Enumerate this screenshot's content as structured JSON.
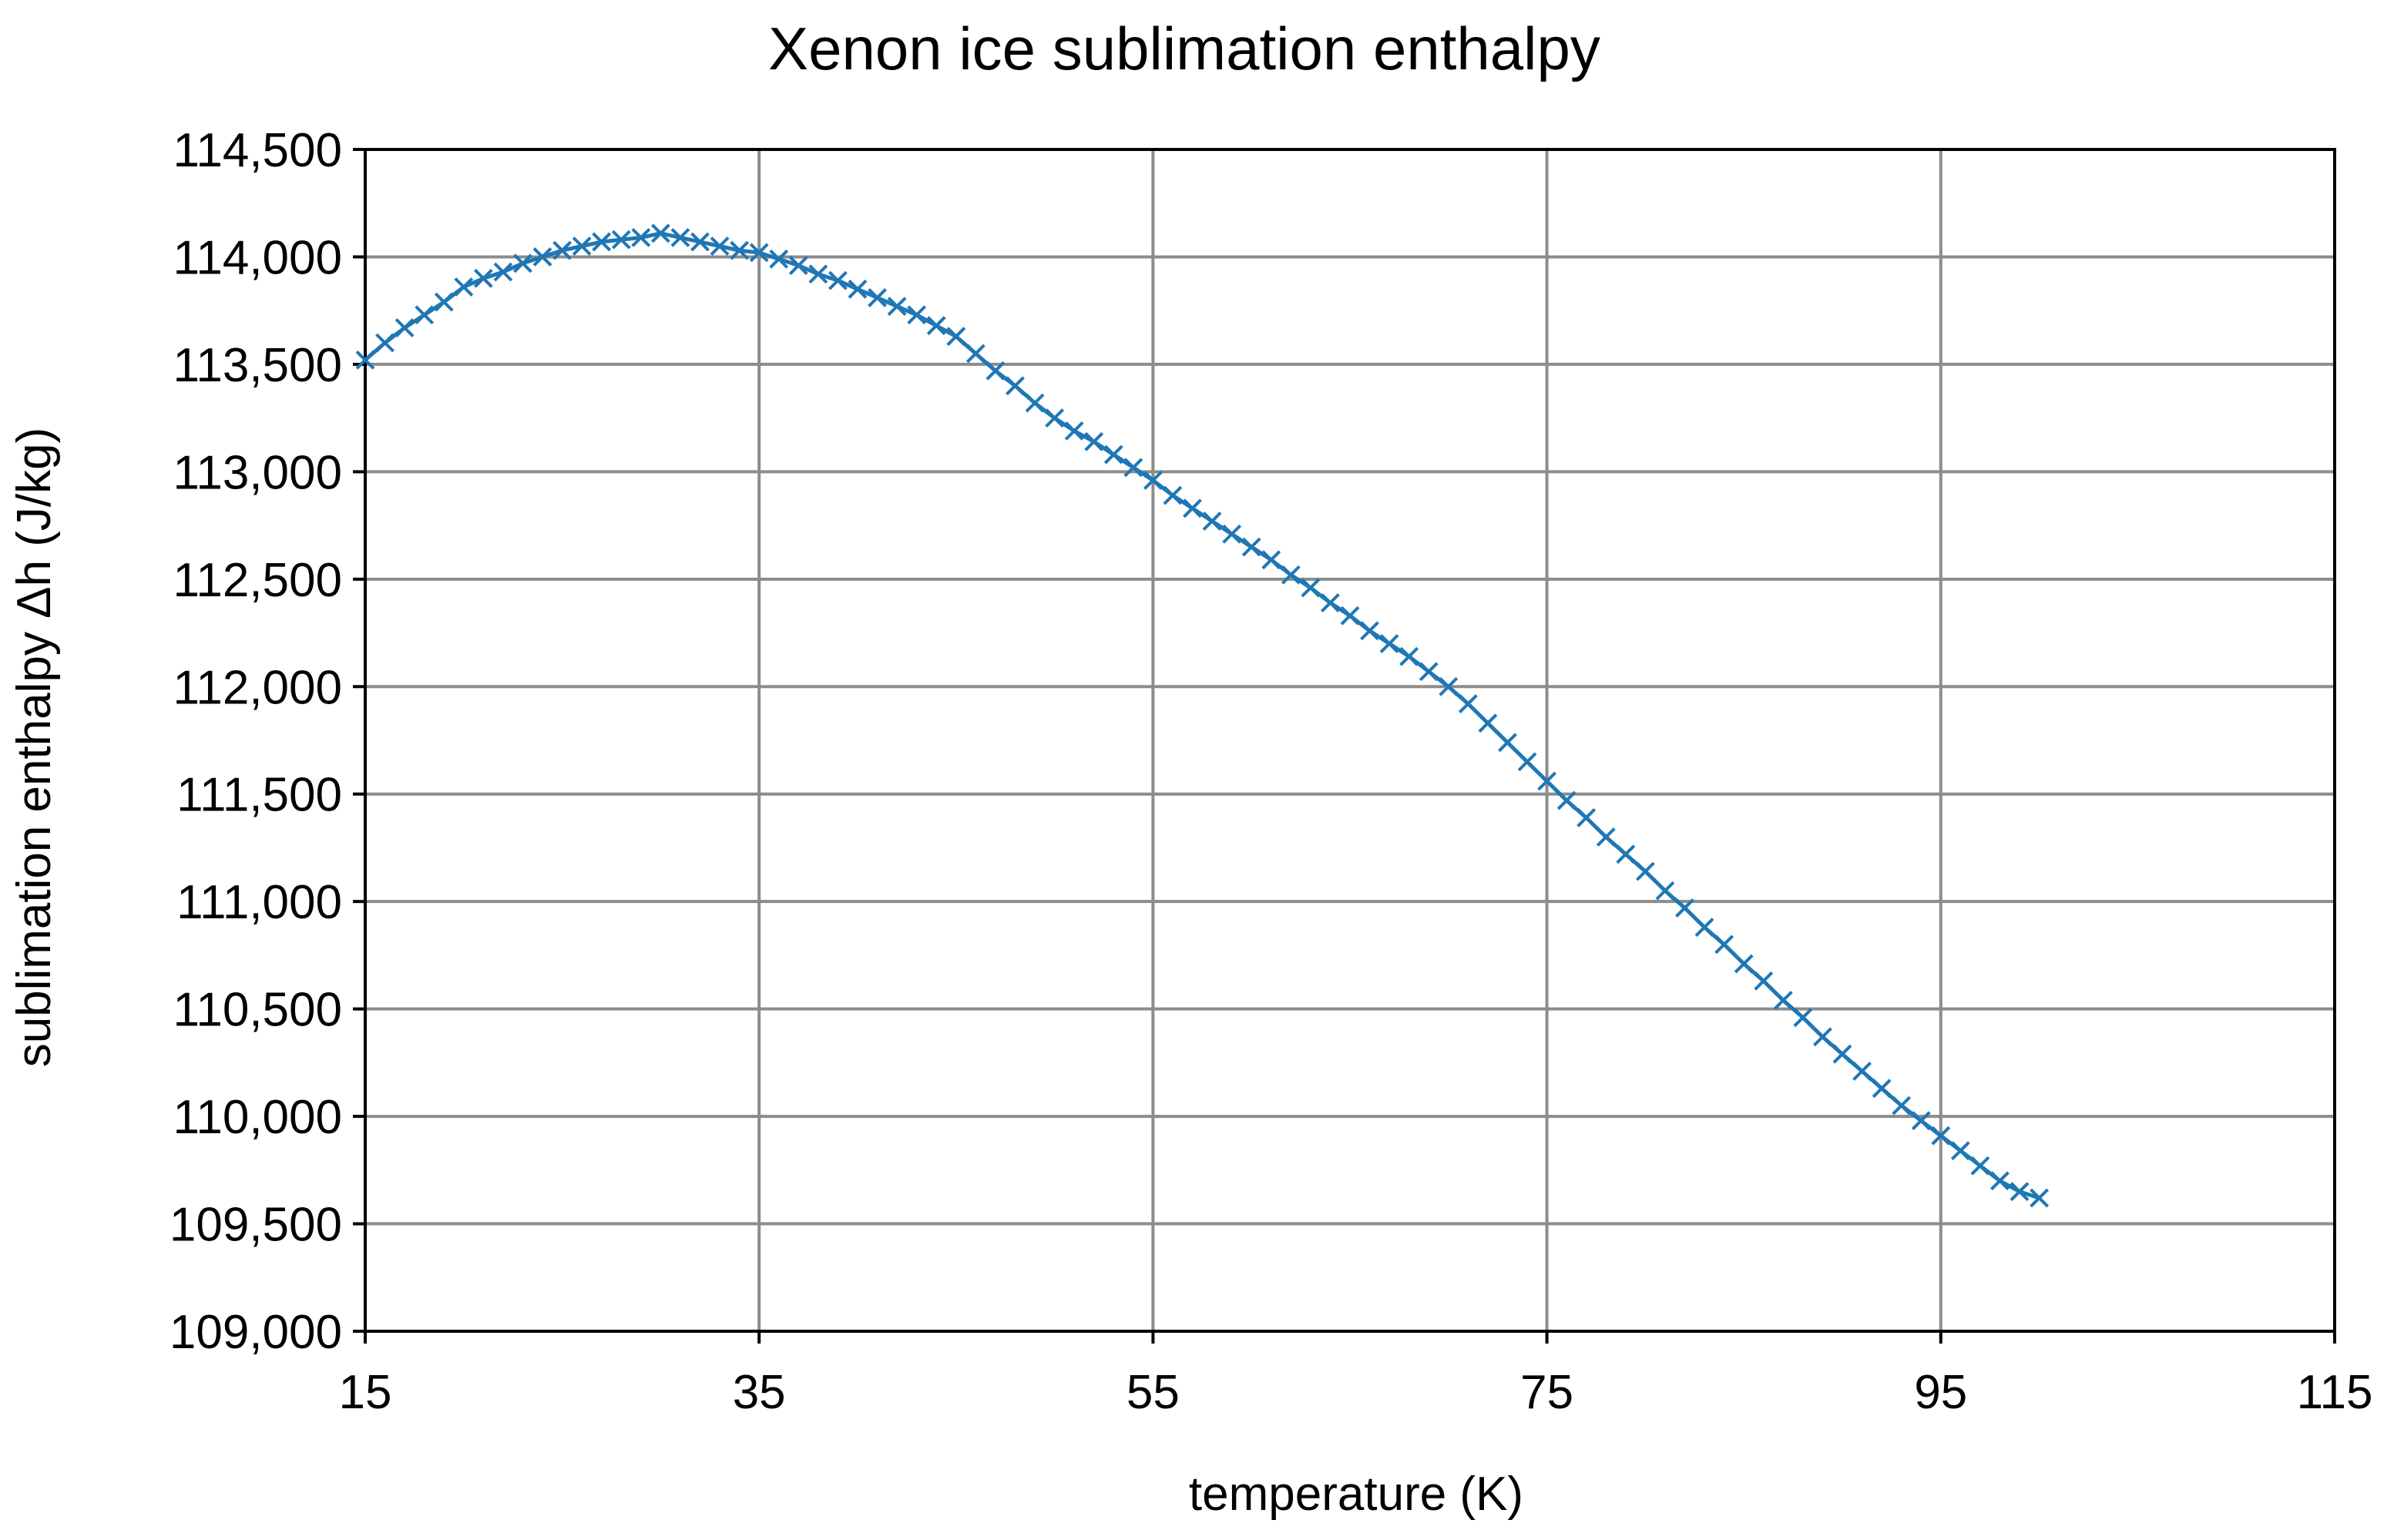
{
  "chart_data": {
    "type": "line",
    "title": "Xenon ice sublimation enthalpy",
    "xlabel": "temperature  (K)",
    "ylabel": "sublimation enthalpy Δh  (J/kg)",
    "xlim": [
      15,
      115
    ],
    "ylim": [
      109000,
      114500
    ],
    "x_ticks": [
      15,
      35,
      55,
      75,
      95,
      115
    ],
    "x_tick_labels": [
      "15",
      "35",
      "55",
      "75",
      "95",
      "115"
    ],
    "y_ticks": [
      109000,
      109500,
      110000,
      110500,
      111000,
      111500,
      112000,
      112500,
      113000,
      113500,
      114000,
      114500
    ],
    "y_tick_labels": [
      "109,000",
      "109,500",
      "110,000",
      "110,500",
      "111,000",
      "111,500",
      "112,000",
      "112,500",
      "113,000",
      "113,500",
      "114,000",
      "114,500"
    ],
    "grid": true,
    "legend": "none",
    "series_color": "#1f77b4",
    "marker": "x",
    "series": [
      {
        "x": [
          15,
          16,
          17,
          18,
          19,
          20,
          21,
          22,
          23,
          24,
          25,
          26,
          27,
          28,
          29,
          30,
          31,
          32,
          33,
          34,
          35,
          36,
          37,
          38,
          39,
          40,
          41,
          42,
          43,
          44,
          45,
          46,
          47,
          48,
          49,
          50,
          51,
          52,
          53,
          54,
          55,
          56,
          57,
          58,
          59,
          60,
          61,
          62,
          63,
          64,
          65,
          66,
          67,
          68,
          69,
          70,
          71,
          72,
          73,
          74,
          75,
          76,
          77,
          78,
          79,
          80,
          81,
          82,
          83,
          84,
          85,
          86,
          87,
          88,
          89,
          90,
          91,
          92,
          93,
          94,
          95,
          96,
          97,
          98,
          99,
          100
        ],
        "y": [
          113520,
          113600,
          113670,
          113730,
          113790,
          113860,
          113900,
          113930,
          113970,
          114000,
          114030,
          114050,
          114070,
          114080,
          114090,
          114110,
          114090,
          114070,
          114050,
          114030,
          114020,
          113990,
          113960,
          113920,
          113890,
          113850,
          113810,
          113770,
          113730,
          113680,
          113630,
          113550,
          113470,
          113400,
          113320,
          113250,
          113190,
          113140,
          113080,
          113020,
          112960,
          112890,
          112830,
          112770,
          112710,
          112650,
          112590,
          112520,
          112460,
          112390,
          112330,
          112260,
          112200,
          112140,
          112070,
          112000,
          111920,
          111830,
          111740,
          111650,
          111560,
          111470,
          111390,
          111300,
          111220,
          111140,
          111050,
          110970,
          110880,
          110800,
          110710,
          110630,
          110540,
          110460,
          110370,
          110290,
          110210,
          110130,
          110050,
          109980,
          109910,
          109840,
          109770,
          109700,
          109650,
          109620
        ]
      }
    ]
  }
}
